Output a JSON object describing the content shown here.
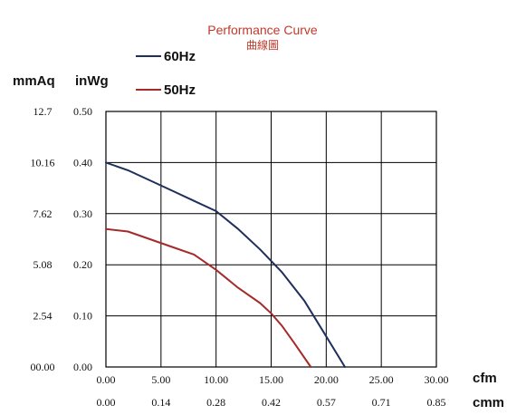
{
  "chart_data": {
    "type": "line",
    "title": "Performance Curve",
    "subtitle": "曲線圖",
    "ylabel_left": "mmAq",
    "ylabel_right": "inWg",
    "xlabel_top": "cfm",
    "xlabel_bottom": "cmm",
    "x_ticks_cfm": [
      "0.00",
      "5.00",
      "10.00",
      "15.00",
      "20.00",
      "25.00",
      "30.00"
    ],
    "x_ticks_cmm": [
      "0.00",
      "0.14",
      "0.28",
      "0.42",
      "0.57",
      "0.71",
      "0.85"
    ],
    "y_ticks_mmaq": [
      "00.00",
      "2.54",
      "5.08",
      "7.62",
      "10.16",
      "12.7"
    ],
    "y_ticks_inwg": [
      "0.00",
      "0.10",
      "0.20",
      "0.30",
      "0.40",
      "0.50"
    ],
    "xlim": [
      0,
      30
    ],
    "ylim": [
      0,
      0.5
    ],
    "grid": true,
    "legend_position": "top-left",
    "series": [
      {
        "name": "60Hz",
        "color": "#1f2f5c",
        "x": [
          0,
          2,
          4,
          6,
          8,
          10,
          12,
          14,
          16,
          18,
          20,
          21.7
        ],
        "y": [
          0.4,
          0.385,
          0.365,
          0.345,
          0.325,
          0.305,
          0.27,
          0.23,
          0.185,
          0.13,
          0.06,
          0.0
        ]
      },
      {
        "name": "50Hz",
        "color": "#a52a2a",
        "x": [
          0,
          2,
          4,
          6,
          8,
          10,
          12,
          14,
          15,
          16,
          17,
          18.6
        ],
        "y": [
          0.27,
          0.265,
          0.25,
          0.235,
          0.22,
          0.19,
          0.155,
          0.125,
          0.105,
          0.08,
          0.05,
          0.0
        ]
      }
    ]
  }
}
